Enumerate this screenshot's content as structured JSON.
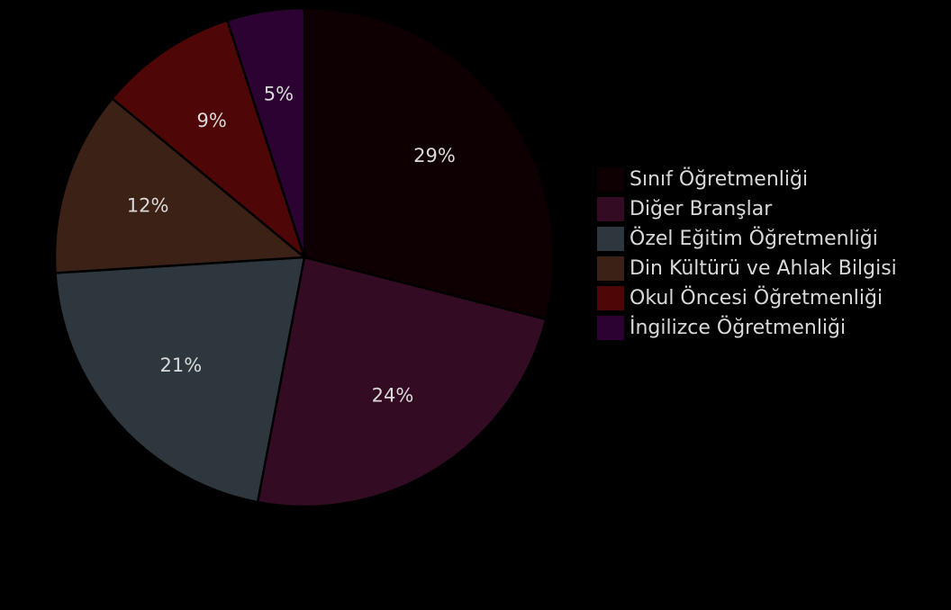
{
  "chart_data": {
    "type": "pie",
    "start_angle_deg": 0,
    "direction": "clockwise",
    "legend_position": "right",
    "label_color": "#d9d9d9",
    "categories": [
      "Sınıf Öğretmenliği",
      "Diğer Branşlar",
      "Özel Eğitim Öğretmenliği",
      "Din Kültürü ve Ahlak Bilgisi",
      "Okul Öncesi Öğretmenliği",
      "İngilizce Öğretmenliği"
    ],
    "values": [
      29,
      24,
      21,
      12,
      9,
      5
    ],
    "value_labels": [
      "29%",
      "24%",
      "21%",
      "12%",
      "9%",
      "5%"
    ],
    "colors": [
      "#0e0002",
      "#330c24",
      "#2d373d",
      "#3c2117",
      "#4f0606",
      "#2c0232"
    ]
  }
}
